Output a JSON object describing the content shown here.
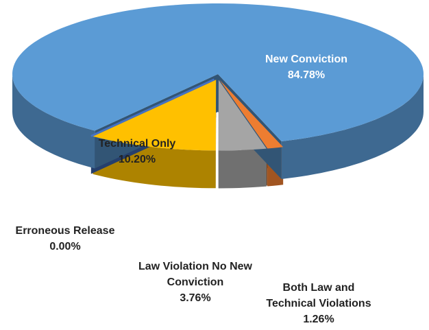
{
  "chart_data": {
    "type": "pie3d",
    "categories": [
      "Both Law and Technical Violations",
      "Law Violation No New Conviction",
      "Technical Only",
      "Erroneous Release",
      "New Conviction"
    ],
    "values": [
      1.26,
      3.76,
      10.2,
      0.0,
      84.78
    ],
    "value_labels": [
      "1.26%",
      "3.76%",
      "10.20%",
      "0.00%",
      "84.78%"
    ],
    "colors": [
      "#ed7d31",
      "#a5a5a5",
      "#ffc000",
      "#4472c4",
      "#5b9bd5"
    ]
  }
}
